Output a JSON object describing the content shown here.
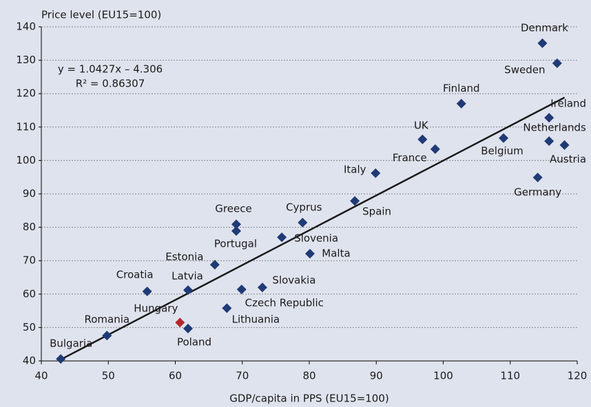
{
  "chart_data": {
    "type": "scatter",
    "y_axis_label": "Price level (EU15=100)",
    "x_axis_label": "GDP/capita in PPS (EU15=100)",
    "labels": [
      "Bulgaria",
      "Romania",
      "Croatia",
      "Latvia",
      "Hungary",
      "Poland",
      "Estonia",
      "Greece",
      "Portugal",
      "Lithuania",
      "Czech Republic",
      "Slovakia",
      "Slovenia",
      "Cyprus",
      "Malta",
      "Spain",
      "Italy",
      "UK",
      "France",
      "Finland",
      "Belgium",
      "Germany",
      "Denmark",
      "Sweden",
      "Ireland",
      "Netherlands",
      "Austria"
    ],
    "x": [
      42.9,
      49.8,
      55.8,
      61.9,
      60.7,
      61.9,
      65.9,
      69.1,
      69.1,
      67.7,
      69.9,
      73.0,
      75.9,
      79.0,
      80.1,
      86.8,
      89.9,
      96.9,
      98.8,
      102.7,
      109.0,
      114.1,
      114.8,
      117.0,
      115.8,
      115.8,
      118.1
    ],
    "values": [
      40.6,
      47.6,
      60.8,
      61.2,
      51.5,
      49.7,
      68.8,
      80.9,
      78.9,
      55.8,
      61.4,
      62.0,
      77.0,
      81.4,
      72.1,
      87.9,
      96.2,
      106.3,
      103.4,
      117.0,
      106.7,
      94.9,
      135.1,
      129.1,
      112.8,
      105.8,
      104.6
    ],
    "colors": [
      "#1f3a75",
      "#1f3a75",
      "#1f3a75",
      "#1f3a75",
      "#b5282e",
      "#1f3a75",
      "#1f3a75",
      "#1f3a75",
      "#1f3a75",
      "#1f3a75",
      "#1f3a75",
      "#1f3a75",
      "#1f3a75",
      "#1f3a75",
      "#1f3a75",
      "#1f3a75",
      "#1f3a75",
      "#1f3a75",
      "#1f3a75",
      "#1f3a75",
      "#1f3a75",
      "#1f3a75",
      "#1f3a75",
      "#1f3a75",
      "#1f3a75",
      "#1f3a75",
      "#1f3a75"
    ],
    "trendline": {
      "slope": 1.0427,
      "intercept": -4.306,
      "equation": "y = 1.0427x – 4.306",
      "r2_label": "R² = 0.86307",
      "color": "#1a1a1a"
    },
    "xlim": [
      40,
      120
    ],
    "xticks": [
      40,
      50,
      60,
      70,
      80,
      90,
      100,
      110,
      120
    ],
    "ylim": [
      40,
      140
    ],
    "yticks": [
      40,
      50,
      60,
      70,
      80,
      90,
      100,
      110,
      120,
      130,
      140
    ],
    "grid": true
  }
}
